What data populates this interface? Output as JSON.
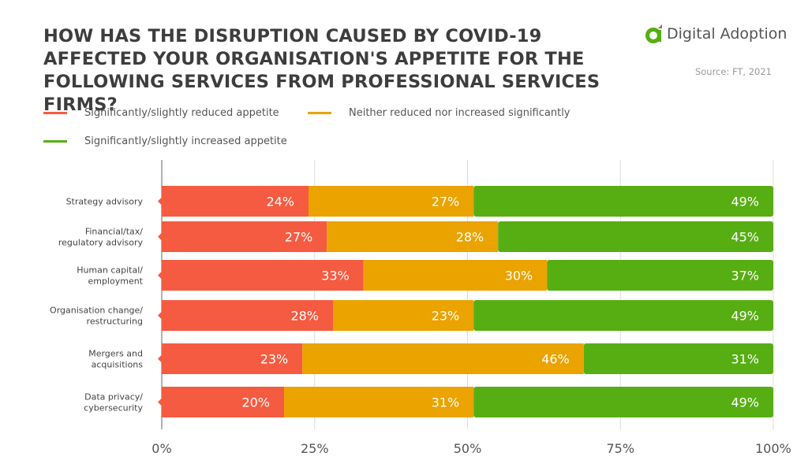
{
  "chart_data": {
    "type": "bar",
    "orientation": "horizontal",
    "stacked": true,
    "title": "HOW HAS THE DISRUPTION CAUSED BY COVID-19 AFFECTED YOUR ORGANISATION'S APPETITE FOR THE FOLLOWING SERVICES FROM PROFESSIONAL SERVICES FIRMS?",
    "source": "Source: FT, 2021",
    "categories": [
      [
        "Strategy advisory"
      ],
      [
        "Financial/tax/",
        "regulatory advisory"
      ],
      [
        "Human capital/",
        "employment"
      ],
      [
        "Organisation change/",
        "restructuring"
      ],
      [
        "Mergers and",
        "acquisitions"
      ],
      [
        "Data privacy/",
        "cybersecurity"
      ]
    ],
    "series": [
      {
        "name": "Significantly/slightly reduced appetite",
        "color": "#F55B41",
        "values": [
          24,
          27,
          33,
          28,
          23,
          20
        ]
      },
      {
        "name": "Neither reduced nor increased significantly",
        "color": "#EBA300",
        "values": [
          27,
          28,
          30,
          23,
          46,
          31
        ]
      },
      {
        "name": "Significantly/slightly increased appetite",
        "color": "#57AE12",
        "values": [
          49,
          45,
          37,
          49,
          31,
          49
        ]
      }
    ],
    "xlim": [
      0,
      100
    ],
    "xticks": [
      "0%",
      "25%",
      "50%",
      "75%",
      "100%"
    ],
    "grid": true,
    "legend_position": "top-left"
  },
  "logo": {
    "text": "Digital Adoption",
    "color": "#57AE12"
  }
}
